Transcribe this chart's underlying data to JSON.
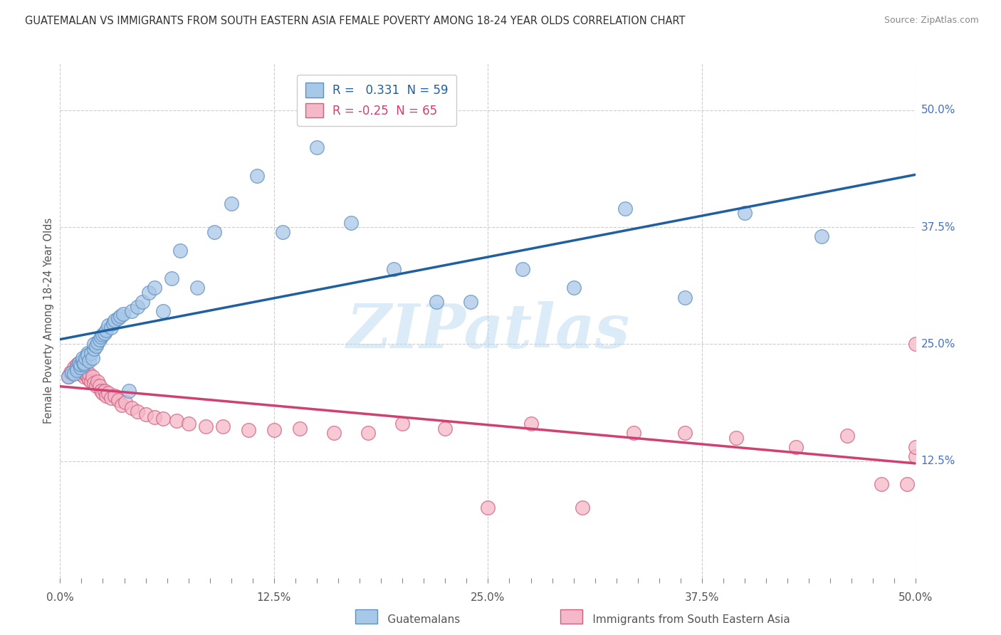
{
  "title": "GUATEMALAN VS IMMIGRANTS FROM SOUTH EASTERN ASIA FEMALE POVERTY AMONG 18-24 YEAR OLDS CORRELATION CHART",
  "source": "Source: ZipAtlas.com",
  "ylabel": "Female Poverty Among 18-24 Year Olds",
  "xlim": [
    0.0,
    0.5
  ],
  "ylim": [
    0.0,
    0.55
  ],
  "xtick_labels": [
    "0.0%",
    "",
    "",
    "",
    "",
    "",
    "",
    "",
    "",
    "",
    "12.5%",
    "",
    "",
    "",
    "",
    "",
    "",
    "",
    "",
    "",
    "25.0%",
    "",
    "",
    "",
    "",
    "",
    "",
    "",
    "",
    "",
    "37.5%",
    "",
    "",
    "",
    "",
    "",
    "",
    "",
    "",
    "",
    "50.0%"
  ],
  "xtick_vals": [
    0.0,
    0.0125,
    0.025,
    0.0375,
    0.05,
    0.0625,
    0.075,
    0.0875,
    0.1,
    0.1125,
    0.125,
    0.1375,
    0.15,
    0.1625,
    0.175,
    0.1875,
    0.2,
    0.2125,
    0.225,
    0.2375,
    0.25,
    0.2625,
    0.275,
    0.2875,
    0.3,
    0.3125,
    0.325,
    0.3375,
    0.35,
    0.3625,
    0.375,
    0.3875,
    0.4,
    0.4125,
    0.425,
    0.4375,
    0.45,
    0.4625,
    0.475,
    0.4875,
    0.5
  ],
  "ytick_labels": [
    "12.5%",
    "25.0%",
    "37.5%",
    "50.0%"
  ],
  "ytick_vals": [
    0.125,
    0.25,
    0.375,
    0.5
  ],
  "blue_R": 0.331,
  "blue_N": 59,
  "pink_R": -0.25,
  "pink_N": 65,
  "blue_color": "#a8c8e8",
  "pink_color": "#f4b8c8",
  "blue_edge_color": "#6090c0",
  "pink_edge_color": "#d06080",
  "blue_line_color": "#2060a0",
  "pink_line_color": "#d04070",
  "background_color": "#ffffff",
  "grid_color": "#cccccc",
  "watermark": "ZIPatlas",
  "blue_scatter_x": [
    0.005,
    0.007,
    0.008,
    0.01,
    0.01,
    0.011,
    0.012,
    0.012,
    0.013,
    0.013,
    0.014,
    0.014,
    0.015,
    0.016,
    0.016,
    0.017,
    0.018,
    0.019,
    0.02,
    0.02,
    0.021,
    0.022,
    0.023,
    0.024,
    0.025,
    0.026,
    0.027,
    0.028,
    0.03,
    0.031,
    0.032,
    0.034,
    0.035,
    0.037,
    0.04,
    0.042,
    0.045,
    0.048,
    0.052,
    0.055,
    0.06,
    0.065,
    0.07,
    0.08,
    0.09,
    0.1,
    0.115,
    0.13,
    0.15,
    0.17,
    0.195,
    0.22,
    0.24,
    0.27,
    0.3,
    0.33,
    0.365,
    0.4,
    0.445
  ],
  "blue_scatter_y": [
    0.215,
    0.22,
    0.218,
    0.225,
    0.222,
    0.23,
    0.225,
    0.228,
    0.232,
    0.235,
    0.228,
    0.23,
    0.235,
    0.24,
    0.238,
    0.232,
    0.24,
    0.235,
    0.245,
    0.25,
    0.248,
    0.252,
    0.255,
    0.258,
    0.26,
    0.262,
    0.265,
    0.27,
    0.268,
    0.272,
    0.275,
    0.278,
    0.28,
    0.282,
    0.2,
    0.285,
    0.29,
    0.295,
    0.305,
    0.31,
    0.285,
    0.32,
    0.35,
    0.31,
    0.37,
    0.4,
    0.43,
    0.37,
    0.46,
    0.38,
    0.33,
    0.295,
    0.295,
    0.33,
    0.31,
    0.395,
    0.3,
    0.39,
    0.365
  ],
  "pink_scatter_x": [
    0.005,
    0.006,
    0.007,
    0.008,
    0.009,
    0.01,
    0.01,
    0.011,
    0.011,
    0.012,
    0.012,
    0.013,
    0.013,
    0.014,
    0.014,
    0.015,
    0.015,
    0.016,
    0.017,
    0.017,
    0.018,
    0.019,
    0.02,
    0.021,
    0.022,
    0.023,
    0.024,
    0.025,
    0.026,
    0.027,
    0.028,
    0.03,
    0.032,
    0.034,
    0.036,
    0.038,
    0.042,
    0.045,
    0.05,
    0.055,
    0.06,
    0.068,
    0.075,
    0.085,
    0.095,
    0.11,
    0.125,
    0.14,
    0.16,
    0.18,
    0.2,
    0.225,
    0.25,
    0.275,
    0.305,
    0.335,
    0.365,
    0.395,
    0.43,
    0.46,
    0.48,
    0.495,
    0.5,
    0.5,
    0.5
  ],
  "pink_scatter_y": [
    0.215,
    0.22,
    0.218,
    0.225,
    0.222,
    0.225,
    0.228,
    0.222,
    0.23,
    0.218,
    0.225,
    0.22,
    0.228,
    0.215,
    0.222,
    0.218,
    0.225,
    0.215,
    0.212,
    0.218,
    0.21,
    0.215,
    0.208,
    0.205,
    0.21,
    0.205,
    0.2,
    0.198,
    0.2,
    0.195,
    0.198,
    0.192,
    0.195,
    0.19,
    0.185,
    0.188,
    0.182,
    0.178,
    0.175,
    0.172,
    0.17,
    0.168,
    0.165,
    0.162,
    0.162,
    0.158,
    0.158,
    0.16,
    0.155,
    0.155,
    0.165,
    0.16,
    0.075,
    0.165,
    0.075,
    0.155,
    0.155,
    0.15,
    0.14,
    0.152,
    0.1,
    0.1,
    0.13,
    0.14,
    0.25
  ]
}
